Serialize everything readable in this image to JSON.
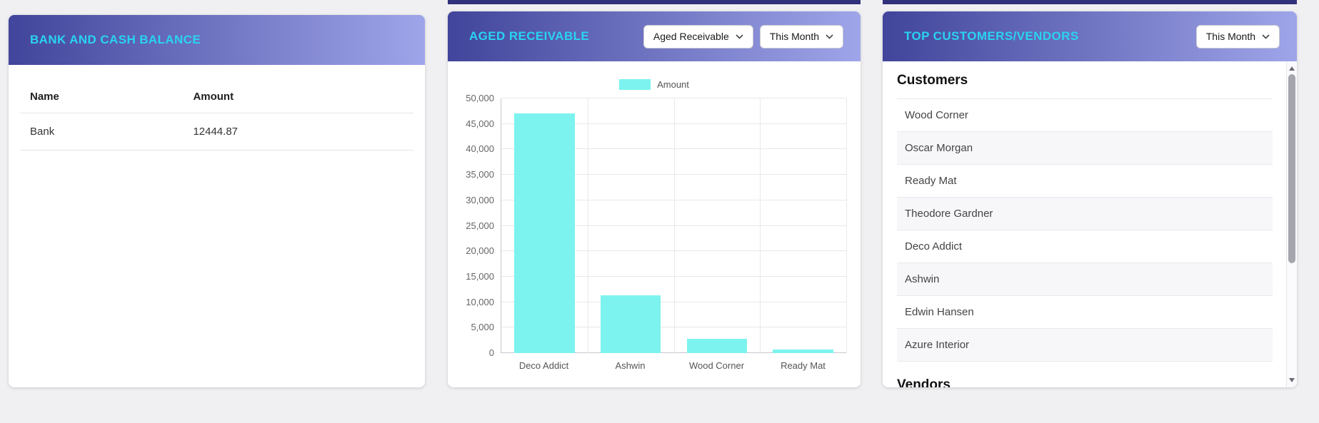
{
  "theme": {
    "page_bg": "#F0F0F3",
    "header_gradient_start": "#41459B",
    "header_gradient_end": "#9FA5E9",
    "title_color": "#29D3F2",
    "clipped_card_color": "#32327B"
  },
  "bank_card": {
    "title": "BANK AND CASH BALANCE",
    "columns": [
      "Name",
      "Amount"
    ],
    "rows": [
      {
        "name": "Bank",
        "amount": "12444.87"
      }
    ]
  },
  "aged_card": {
    "title": "AGED RECEIVABLE",
    "type_dropdown": "Aged Receivable",
    "period_dropdown": "This Month",
    "chart_data": {
      "type": "bar",
      "title": "Aged Receivable",
      "legend": "Amount",
      "legend_position": "top",
      "categories": [
        "Deco Addict",
        "Ashwin",
        "Wood Corner",
        "Ready Mat"
      ],
      "values": [
        47000,
        11400,
        2800,
        700
      ],
      "xlabel": "",
      "ylabel": "",
      "ylim": [
        0,
        50000
      ],
      "ytick_step": 5000,
      "ytick_labels": [
        "0",
        "5,000",
        "10,000",
        "15,000",
        "20,000",
        "25,000",
        "30,000",
        "35,000",
        "40,000",
        "45,000",
        "50,000"
      ],
      "grid": true,
      "bar_color": "#7CF3EF"
    }
  },
  "top_card": {
    "title": "TOP CUSTOMERS/VENDORS",
    "period_dropdown": "This Month",
    "customers_heading": "Customers",
    "customers": [
      "Wood Corner",
      "Oscar Morgan",
      "Ready Mat",
      "Theodore Gardner",
      "Deco Addict",
      "Ashwin",
      "Edwin Hansen",
      "Azure Interior"
    ],
    "vendors_heading": "Vendors"
  }
}
